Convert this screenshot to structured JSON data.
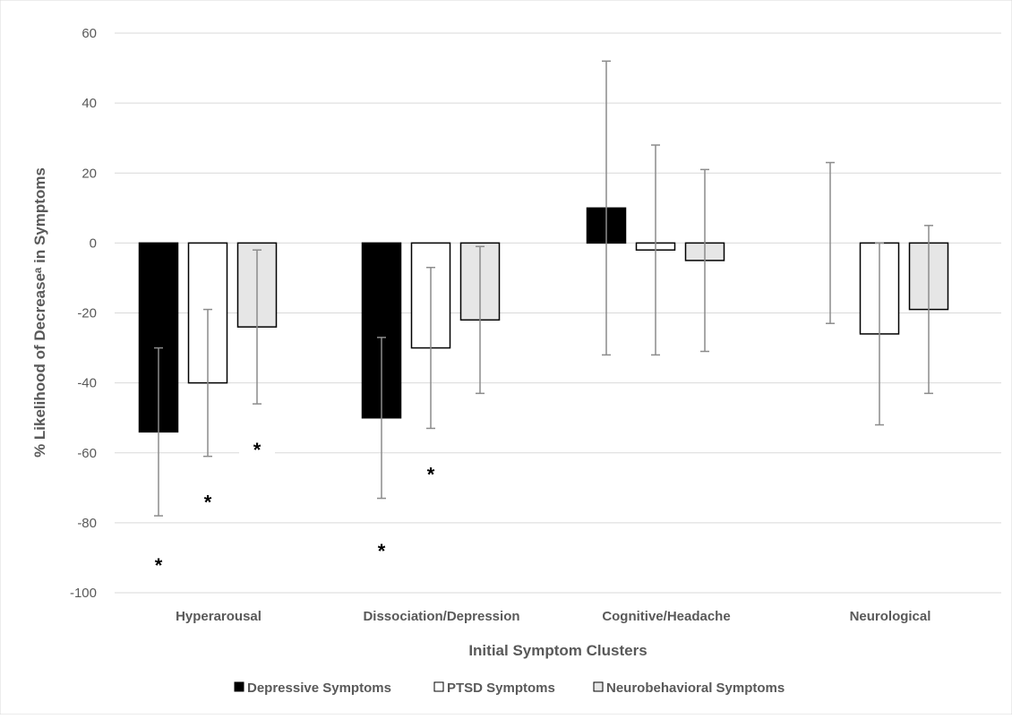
{
  "chart_data": {
    "type": "bar",
    "categories": [
      "Hyperarousal",
      "Dissociation/Depression",
      "Cognitive/Headache",
      "Neurological"
    ],
    "series": [
      {
        "name": "Depressive Symptoms",
        "color": "#000000",
        "values": [
          -54,
          -50,
          10,
          0
        ],
        "error_low": [
          -78,
          -73,
          -32,
          -23
        ],
        "error_high": [
          -30,
          -27,
          52,
          23
        ]
      },
      {
        "name": "PTSD Symptoms",
        "color": "#ffffff",
        "values": [
          -40,
          -30,
          -2,
          -26
        ],
        "error_low": [
          -61,
          -53,
          -32,
          -52
        ],
        "error_high": [
          -19,
          -7,
          28,
          0
        ]
      },
      {
        "name": "Neurobehavioral Symptoms",
        "color": "#e6e6e6",
        "values": [
          -24,
          -22,
          -5,
          -19
        ],
        "error_low": [
          -46,
          -43,
          -31,
          -43
        ],
        "error_high": [
          -2,
          -1,
          21,
          5
        ]
      }
    ],
    "significance_marker": "*",
    "significance": [
      {
        "series": 0,
        "category": 0,
        "y": -91
      },
      {
        "series": 1,
        "category": 0,
        "y": -73
      },
      {
        "series": 2,
        "category": 0,
        "y": -58
      },
      {
        "series": 0,
        "category": 1,
        "y": -87
      },
      {
        "series": 1,
        "category": 1,
        "y": -65
      }
    ],
    "xlabel": "Initial Symptom Clusters",
    "ylabel": "% Likelihood of Decreaseᵃ in Symptoms",
    "ylim": [
      -100,
      60
    ],
    "yticks": [
      60,
      40,
      20,
      0,
      -20,
      -40,
      -60,
      -80,
      -100
    ],
    "ytick_labels": [
      "60",
      "40",
      "20",
      "0",
      "-20",
      "-40",
      "-60",
      "-80",
      "-100"
    ],
    "grid": true,
    "legend_position": "bottom"
  }
}
